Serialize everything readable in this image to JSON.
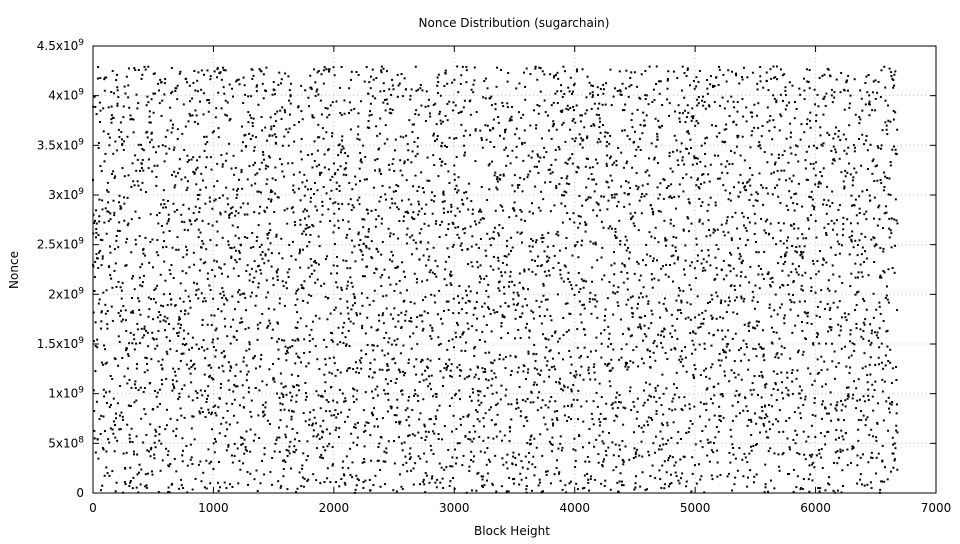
{
  "chart_data": {
    "type": "scatter",
    "title": "Nonce Distribution (sugarchain)",
    "xlabel": "Block Height",
    "ylabel": "Nonce",
    "xlim": [
      0,
      7000
    ],
    "ylim": [
      0,
      4500000000
    ],
    "grid": true,
    "marker_color": "#000000",
    "x_ticks": [
      {
        "value": 0,
        "label": "0"
      },
      {
        "value": 1000,
        "label": "1000"
      },
      {
        "value": 2000,
        "label": "2000"
      },
      {
        "value": 3000,
        "label": "3000"
      },
      {
        "value": 4000,
        "label": "4000"
      },
      {
        "value": 5000,
        "label": "5000"
      },
      {
        "value": 6000,
        "label": "6000"
      },
      {
        "value": 7000,
        "label": "7000"
      }
    ],
    "y_ticks": [
      {
        "value": 0,
        "base": "0",
        "exp": ""
      },
      {
        "value": 500000000,
        "base": "5x10",
        "exp": "8"
      },
      {
        "value": 1000000000,
        "base": "1x10",
        "exp": "9"
      },
      {
        "value": 1500000000,
        "base": "1.5x10",
        "exp": "9"
      },
      {
        "value": 2000000000,
        "base": "2x10",
        "exp": "9"
      },
      {
        "value": 2500000000,
        "base": "2.5x10",
        "exp": "9"
      },
      {
        "value": 3000000000,
        "base": "3x10",
        "exp": "9"
      },
      {
        "value": 3500000000,
        "base": "3.5x10",
        "exp": "9"
      },
      {
        "value": 4000000000,
        "base": "4x10",
        "exp": "9"
      },
      {
        "value": 4500000000,
        "base": "4.5x10",
        "exp": "9"
      }
    ],
    "series": [
      {
        "x_start": 0,
        "x_end": 6680,
        "y_min": 0,
        "y_max": 4294967295,
        "distribution": "uniform",
        "x": [
          0,
          180,
          410,
          730,
          960,
          1250,
          1530,
          1800,
          2120,
          2390,
          2700,
          2980,
          3260,
          3540,
          3820,
          4150,
          4430,
          4710,
          5010,
          5300,
          5580,
          5890,
          6170,
          6450,
          6680
        ],
        "y": [
          3150000000,
          420000000,
          4210000000,
          1830000000,
          2710000000,
          960000000,
          3840000000,
          1420000000,
          250000000,
          2980000000,
          4060000000,
          1170000000,
          2440000000,
          3570000000,
          680000000,
          1950000000,
          3320000000,
          140000000,
          2560000000,
          3990000000,
          880000000,
          2190000000,
          3680000000,
          1290000000,
          610000000
        ]
      }
    ]
  }
}
